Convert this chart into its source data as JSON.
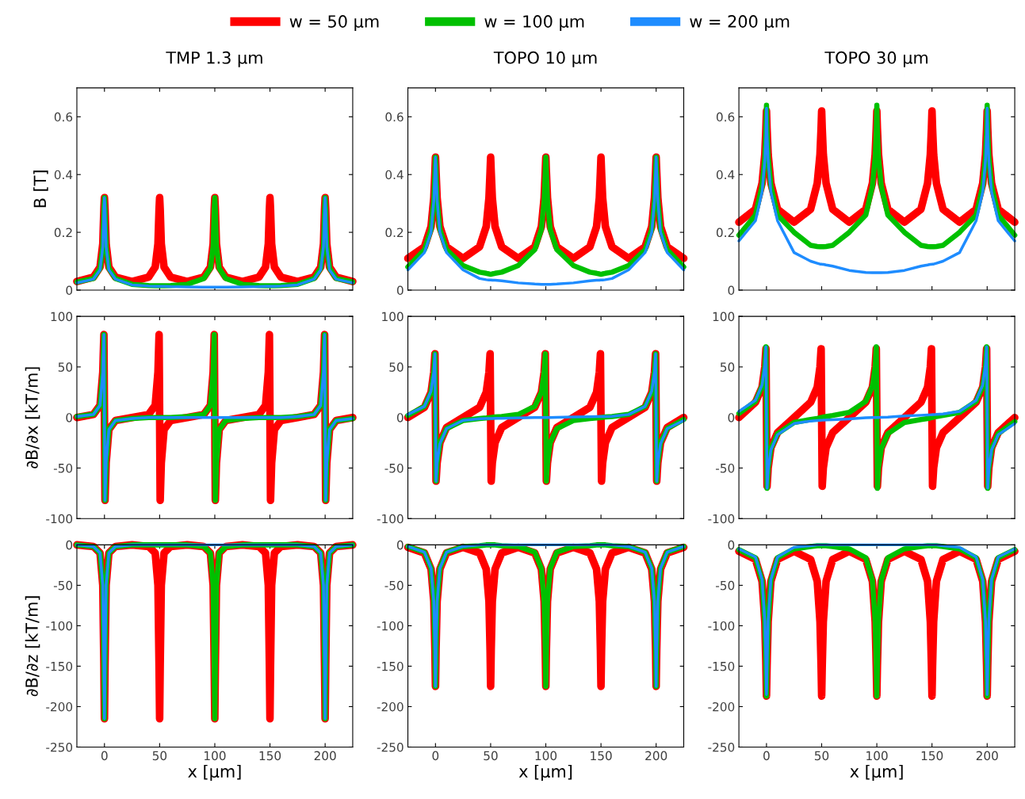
{
  "chart_data": [
    {
      "type": "line",
      "title": "TMP 1.3 µm",
      "ylabel": "B [T]",
      "legend": "top",
      "xlim": [
        -25,
        225
      ],
      "ylim": [
        0,
        0.7
      ],
      "yticks": [
        0,
        0.2,
        0.4,
        0.6
      ],
      "xticks": [
        0,
        50,
        100,
        150,
        200
      ],
      "tick_labels": "y",
      "x": [
        -25,
        -10,
        -4,
        -1.5,
        -0.5,
        0,
        0.5,
        1.5,
        4,
        10,
        25,
        40,
        46,
        48.5,
        49.5,
        50,
        50.5,
        51.5,
        54,
        60,
        75,
        90,
        96,
        98.5,
        99.5,
        100,
        100.5,
        101.5,
        104,
        110,
        125,
        140,
        146,
        148.5,
        149.5,
        150,
        150.5,
        151.5,
        154,
        160,
        175,
        190,
        196,
        198.5,
        199.5,
        200,
        200.5,
        201.5,
        204,
        210,
        225
      ],
      "series": [
        {
          "name": "w = 50 µm",
          "color": "#ff0000",
          "values": [
            0.03,
            0.045,
            0.08,
            0.16,
            0.28,
            0.32,
            0.28,
            0.16,
            0.08,
            0.045,
            0.03,
            0.045,
            0.08,
            0.16,
            0.28,
            0.32,
            0.28,
            0.16,
            0.08,
            0.045,
            0.03,
            0.045,
            0.08,
            0.16,
            0.28,
            0.32,
            0.28,
            0.16,
            0.08,
            0.045,
            0.03,
            0.045,
            0.08,
            0.16,
            0.28,
            0.32,
            0.28,
            0.16,
            0.08,
            0.045,
            0.03,
            0.045,
            0.08,
            0.16,
            0.28,
            0.32,
            0.28,
            0.16,
            0.08,
            0.045,
            0.03
          ]
        },
        {
          "name": "w = 100 µm",
          "color": "#00c000",
          "values": [
            0.028,
            0.04,
            0.075,
            0.15,
            0.28,
            0.32,
            0.28,
            0.15,
            0.075,
            0.04,
            0.02,
            0.016,
            0.015,
            0.015,
            0.015,
            0.015,
            0.015,
            0.015,
            0.015,
            0.016,
            0.02,
            0.04,
            0.075,
            0.15,
            0.28,
            0.32,
            0.28,
            0.15,
            0.075,
            0.04,
            0.02,
            0.016,
            0.015,
            0.015,
            0.015,
            0.015,
            0.015,
            0.015,
            0.015,
            0.016,
            0.02,
            0.04,
            0.075,
            0.15,
            0.28,
            0.32,
            0.28,
            0.15,
            0.075,
            0.04,
            0.028
          ]
        },
        {
          "name": "w = 200 µm",
          "color": "#1e8cff",
          "values": [
            0.025,
            0.038,
            0.07,
            0.15,
            0.28,
            0.32,
            0.28,
            0.15,
            0.07,
            0.038,
            0.018,
            0.014,
            0.013,
            0.013,
            0.013,
            0.013,
            0.013,
            0.013,
            0.013,
            0.012,
            0.011,
            0.01,
            0.01,
            0.01,
            0.01,
            0.01,
            0.01,
            0.01,
            0.01,
            0.01,
            0.011,
            0.012,
            0.013,
            0.013,
            0.013,
            0.013,
            0.013,
            0.013,
            0.013,
            0.014,
            0.018,
            0.038,
            0.07,
            0.15,
            0.28,
            0.32,
            0.28,
            0.15,
            0.07,
            0.038,
            0.025
          ]
        }
      ]
    },
    {
      "type": "line",
      "title": "TOPO 10 µm",
      "xlim": [
        -25,
        225
      ],
      "ylim": [
        0,
        0.7
      ],
      "yticks": [
        0,
        0.2,
        0.4,
        0.6
      ],
      "xticks": [
        0,
        50,
        100,
        150,
        200
      ],
      "tick_labels": "y",
      "x": [
        -25,
        -10,
        -4,
        -1.5,
        -0.5,
        0,
        0.5,
        1.5,
        4,
        10,
        25,
        40,
        46,
        48.5,
        49.5,
        50,
        50.5,
        51.5,
        54,
        60,
        75,
        90,
        96,
        98.5,
        99.5,
        100,
        100.5,
        101.5,
        104,
        110,
        125,
        140,
        146,
        148.5,
        149.5,
        150,
        150.5,
        151.5,
        154,
        160,
        175,
        190,
        196,
        198.5,
        199.5,
        200,
        200.5,
        201.5,
        204,
        210,
        225
      ],
      "series": [
        {
          "color": "#ff0000",
          "values": [
            0.11,
            0.15,
            0.22,
            0.32,
            0.41,
            0.46,
            0.41,
            0.32,
            0.22,
            0.15,
            0.11,
            0.15,
            0.22,
            0.32,
            0.41,
            0.46,
            0.41,
            0.32,
            0.22,
            0.15,
            0.11,
            0.15,
            0.22,
            0.32,
            0.41,
            0.46,
            0.41,
            0.32,
            0.22,
            0.15,
            0.11,
            0.15,
            0.22,
            0.32,
            0.41,
            0.46,
            0.41,
            0.32,
            0.22,
            0.15,
            0.11,
            0.15,
            0.22,
            0.32,
            0.41,
            0.46,
            0.41,
            0.32,
            0.22,
            0.15,
            0.11
          ]
        },
        {
          "color": "#00c000",
          "values": [
            0.08,
            0.14,
            0.21,
            0.31,
            0.41,
            0.46,
            0.41,
            0.31,
            0.21,
            0.14,
            0.085,
            0.062,
            0.058,
            0.056,
            0.055,
            0.055,
            0.055,
            0.056,
            0.058,
            0.062,
            0.085,
            0.14,
            0.21,
            0.31,
            0.41,
            0.46,
            0.41,
            0.31,
            0.21,
            0.14,
            0.085,
            0.062,
            0.058,
            0.056,
            0.055,
            0.055,
            0.055,
            0.056,
            0.058,
            0.062,
            0.085,
            0.14,
            0.21,
            0.31,
            0.41,
            0.46,
            0.41,
            0.31,
            0.21,
            0.14,
            0.08
          ]
        },
        {
          "color": "#1e8cff",
          "values": [
            0.07,
            0.13,
            0.2,
            0.31,
            0.41,
            0.46,
            0.41,
            0.31,
            0.2,
            0.13,
            0.07,
            0.04,
            0.036,
            0.035,
            0.035,
            0.035,
            0.035,
            0.034,
            0.034,
            0.032,
            0.025,
            0.021,
            0.02,
            0.02,
            0.02,
            0.02,
            0.02,
            0.02,
            0.02,
            0.021,
            0.025,
            0.032,
            0.034,
            0.034,
            0.035,
            0.035,
            0.035,
            0.035,
            0.036,
            0.04,
            0.07,
            0.13,
            0.2,
            0.31,
            0.41,
            0.46,
            0.41,
            0.31,
            0.2,
            0.13,
            0.07
          ]
        }
      ]
    },
    {
      "type": "line",
      "title": "TOPO 30 µm",
      "xlim": [
        -25,
        225
      ],
      "ylim": [
        0,
        0.7
      ],
      "yticks": [
        0,
        0.2,
        0.4,
        0.6
      ],
      "xticks": [
        0,
        50,
        100,
        150,
        200
      ],
      "tick_labels": "y",
      "x": [
        -25,
        -10,
        -4,
        -1.5,
        -0.5,
        0,
        0.5,
        1.5,
        4,
        10,
        25,
        40,
        46,
        48.5,
        49.5,
        50,
        50.5,
        51.5,
        54,
        60,
        75,
        90,
        96,
        98.5,
        99.5,
        100,
        100.5,
        101.5,
        104,
        110,
        125,
        140,
        146,
        148.5,
        149.5,
        150,
        150.5,
        151.5,
        154,
        160,
        175,
        190,
        196,
        198.5,
        199.5,
        200,
        200.5,
        201.5,
        204,
        210,
        225
      ],
      "series": [
        {
          "color": "#ff0000",
          "values": [
            0.235,
            0.28,
            0.37,
            0.47,
            0.56,
            0.62,
            0.56,
            0.47,
            0.37,
            0.28,
            0.235,
            0.28,
            0.37,
            0.47,
            0.56,
            0.62,
            0.56,
            0.47,
            0.37,
            0.28,
            0.235,
            0.28,
            0.37,
            0.47,
            0.56,
            0.62,
            0.56,
            0.47,
            0.37,
            0.28,
            0.235,
            0.28,
            0.37,
            0.47,
            0.56,
            0.62,
            0.56,
            0.47,
            0.37,
            0.28,
            0.235,
            0.28,
            0.37,
            0.47,
            0.56,
            0.62,
            0.56,
            0.47,
            0.37,
            0.28,
            0.235
          ]
        },
        {
          "color": "#00c000",
          "values": [
            0.19,
            0.26,
            0.36,
            0.46,
            0.55,
            0.64,
            0.55,
            0.46,
            0.36,
            0.26,
            0.2,
            0.155,
            0.151,
            0.15,
            0.15,
            0.15,
            0.15,
            0.15,
            0.151,
            0.155,
            0.2,
            0.26,
            0.36,
            0.46,
            0.55,
            0.64,
            0.55,
            0.46,
            0.36,
            0.26,
            0.2,
            0.155,
            0.151,
            0.15,
            0.15,
            0.15,
            0.15,
            0.15,
            0.151,
            0.155,
            0.2,
            0.26,
            0.36,
            0.46,
            0.55,
            0.64,
            0.55,
            0.46,
            0.36,
            0.26,
            0.19
          ]
        },
        {
          "color": "#1e8cff",
          "values": [
            0.17,
            0.24,
            0.34,
            0.45,
            0.54,
            0.63,
            0.54,
            0.45,
            0.34,
            0.24,
            0.13,
            0.1,
            0.093,
            0.09,
            0.09,
            0.09,
            0.089,
            0.089,
            0.087,
            0.083,
            0.068,
            0.061,
            0.06,
            0.06,
            0.06,
            0.06,
            0.06,
            0.06,
            0.06,
            0.061,
            0.068,
            0.083,
            0.087,
            0.089,
            0.089,
            0.09,
            0.09,
            0.09,
            0.093,
            0.1,
            0.13,
            0.24,
            0.34,
            0.45,
            0.54,
            0.63,
            0.54,
            0.45,
            0.34,
            0.24,
            0.17
          ]
        }
      ]
    },
    {
      "type": "line",
      "ylabel": "∂B/∂x [kT/m]",
      "xlim": [
        -25,
        225
      ],
      "ylim": [
        -100,
        100
      ],
      "yticks": [
        -100,
        -50,
        0,
        50,
        100
      ],
      "xticks": [
        0,
        50,
        100,
        150,
        200
      ],
      "tick_labels": "y",
      "x": [
        -25,
        -10,
        -4,
        -1.5,
        -0.5,
        0,
        0.5,
        1.5,
        4,
        10,
        25,
        40,
        46,
        48.5,
        49.5,
        50,
        50.5,
        51.5,
        54,
        60,
        75,
        90,
        96,
        98.5,
        99.5,
        100,
        100.5,
        101.5,
        104,
        110,
        125,
        140,
        146,
        148.5,
        149.5,
        150,
        150.5,
        151.5,
        154,
        160,
        175,
        190,
        196,
        198.5,
        199.5,
        200,
        200.5,
        201.5,
        204,
        210,
        225
      ],
      "series": [
        {
          "color": "#ff0000",
          "values": [
            0,
            3,
            12,
            45,
            82,
            0,
            -82,
            -45,
            -12,
            -3,
            0,
            3,
            12,
            45,
            82,
            0,
            -82,
            -45,
            -12,
            -3,
            0,
            3,
            12,
            45,
            82,
            0,
            -82,
            -45,
            -12,
            -3,
            0,
            3,
            12,
            45,
            82,
            0,
            -82,
            -45,
            -12,
            -3,
            0,
            3,
            12,
            45,
            82,
            0,
            -82,
            -45,
            -12,
            -3,
            0
          ]
        },
        {
          "color": "#00c000",
          "values": [
            1,
            3,
            12,
            45,
            82,
            0,
            -82,
            -45,
            -12,
            -3,
            -1,
            0,
            0,
            0,
            0,
            0,
            0,
            0,
            0,
            0,
            1,
            3,
            12,
            45,
            82,
            0,
            -82,
            -45,
            -12,
            -3,
            -1,
            0,
            0,
            0,
            0,
            0,
            0,
            0,
            0,
            0,
            1,
            3,
            12,
            45,
            82,
            0,
            -82,
            -45,
            -12,
            -3,
            -1
          ]
        },
        {
          "color": "#1e8cff",
          "values": [
            1,
            3,
            12,
            45,
            82,
            0,
            -82,
            -45,
            -12,
            -3,
            -1,
            0,
            0,
            0,
            0,
            0,
            0,
            0,
            0,
            0,
            0,
            0,
            0,
            0,
            0,
            0,
            0,
            0,
            0,
            0,
            0,
            0,
            0,
            0,
            0,
            0,
            0,
            0,
            0,
            0,
            1,
            3,
            12,
            45,
            82,
            0,
            -82,
            -45,
            -12,
            -3,
            -1
          ]
        }
      ]
    },
    {
      "type": "line",
      "xlim": [
        -25,
        225
      ],
      "ylim": [
        -100,
        100
      ],
      "yticks": [
        -100,
        -50,
        0,
        50,
        100
      ],
      "xticks": [
        0,
        50,
        100,
        150,
        200
      ],
      "tick_labels": "y",
      "x": [
        -25,
        -10,
        -4,
        -1.5,
        -0.5,
        0,
        0.5,
        1.5,
        4,
        10,
        25,
        40,
        46,
        48.5,
        49.5,
        50,
        50.5,
        51.5,
        54,
        60,
        75,
        90,
        96,
        98.5,
        99.5,
        100,
        100.5,
        101.5,
        104,
        110,
        125,
        140,
        146,
        148.5,
        149.5,
        150,
        150.5,
        151.5,
        154,
        160,
        175,
        190,
        196,
        198.5,
        199.5,
        200,
        200.5,
        201.5,
        204,
        210,
        225
      ],
      "series": [
        {
          "color": "#ff0000",
          "values": [
            0,
            10,
            25,
            45,
            63,
            0,
            -63,
            -45,
            -25,
            -10,
            0,
            10,
            25,
            45,
            63,
            0,
            -63,
            -45,
            -25,
            -10,
            0,
            10,
            25,
            45,
            63,
            0,
            -63,
            -45,
            -25,
            -10,
            0,
            10,
            25,
            45,
            63,
            0,
            -63,
            -45,
            -25,
            -10,
            0,
            10,
            25,
            45,
            63,
            0,
            -63,
            -45,
            -25,
            -10,
            0
          ]
        },
        {
          "color": "#00c000",
          "values": [
            2,
            11,
            25,
            45,
            63,
            0,
            -63,
            -45,
            -25,
            -11,
            -3,
            -1,
            -0.5,
            -0.2,
            0,
            0,
            0,
            0.2,
            0.5,
            1,
            3,
            11,
            25,
            45,
            63,
            0,
            -63,
            -45,
            -25,
            -11,
            -3,
            -1,
            -0.5,
            -0.2,
            0,
            0,
            0,
            0.2,
            0.5,
            1,
            3,
            11,
            25,
            45,
            63,
            0,
            -63,
            -45,
            -25,
            -11,
            -2
          ]
        },
        {
          "color": "#1e8cff",
          "values": [
            3,
            11,
            26,
            45,
            63,
            0,
            -63,
            -45,
            -26,
            -11,
            -3,
            -1.2,
            -1,
            -1,
            -1,
            -1,
            -1,
            -1,
            -0.9,
            -0.8,
            -0.5,
            -0.1,
            0,
            0,
            0,
            0,
            0,
            0,
            0,
            0.1,
            0.5,
            0.8,
            0.9,
            1,
            1,
            1,
            1,
            1,
            1,
            1.2,
            3,
            11,
            26,
            45,
            63,
            0,
            -63,
            -45,
            -26,
            -11,
            -3
          ]
        }
      ]
    },
    {
      "type": "line",
      "xlim": [
        -25,
        225
      ],
      "ylim": [
        -100,
        100
      ],
      "yticks": [
        -100,
        -50,
        0,
        50,
        100
      ],
      "xticks": [
        0,
        50,
        100,
        150,
        200
      ],
      "tick_labels": "y",
      "x": [
        -25,
        -10,
        -4,
        -1.5,
        -0.5,
        0,
        0.5,
        1.5,
        4,
        10,
        25,
        40,
        46,
        48.5,
        49.5,
        50,
        50.5,
        51.5,
        54,
        60,
        75,
        90,
        96,
        98.5,
        99.5,
        100,
        100.5,
        101.5,
        104,
        110,
        125,
        140,
        146,
        148.5,
        149.5,
        150,
        150.5,
        151.5,
        154,
        160,
        175,
        190,
        196,
        198.5,
        199.5,
        200,
        200.5,
        201.5,
        204,
        210,
        225
      ],
      "series": [
        {
          "color": "#ff0000",
          "values": [
            0,
            15,
            30,
            50,
            68,
            0,
            -68,
            -50,
            -30,
            -15,
            0,
            15,
            30,
            50,
            68,
            0,
            -68,
            -50,
            -30,
            -15,
            0,
            15,
            30,
            50,
            68,
            0,
            -68,
            -50,
            -30,
            -15,
            0,
            15,
            30,
            50,
            68,
            0,
            -68,
            -50,
            -30,
            -15,
            0,
            15,
            30,
            50,
            68,
            0,
            -68,
            -50,
            -30,
            -15,
            0
          ]
        },
        {
          "color": "#00c000",
          "values": [
            4,
            16,
            31,
            50,
            70,
            0,
            -70,
            -50,
            -31,
            -16,
            -5,
            -2,
            -1,
            -0.4,
            0,
            0,
            0,
            0.4,
            1,
            2,
            5,
            16,
            31,
            50,
            70,
            0,
            -70,
            -50,
            -31,
            -16,
            -5,
            -2,
            -1,
            -0.4,
            0,
            0,
            0,
            0.4,
            1,
            2,
            5,
            16,
            31,
            50,
            70,
            0,
            -70,
            -50,
            -31,
            -16,
            -4
          ]
        },
        {
          "color": "#1e8cff",
          "values": [
            6,
            17,
            32,
            52,
            70,
            0,
            -70,
            -52,
            -32,
            -17,
            -6,
            -3.5,
            -3,
            -2.8,
            -2.8,
            -2.7,
            -2.7,
            -2.6,
            -2.5,
            -2.2,
            -1.5,
            -0.3,
            -0.1,
            0,
            0,
            0,
            0,
            0,
            0.1,
            0.3,
            1.5,
            2.2,
            2.5,
            2.6,
            2.7,
            2.7,
            2.8,
            2.8,
            3,
            3.5,
            6,
            17,
            32,
            52,
            70,
            0,
            -70,
            -52,
            -32,
            -17,
            -6
          ]
        }
      ]
    },
    {
      "type": "line",
      "ylabel": "∂B/∂z [kT/m]",
      "xlabel": "x [µm]",
      "xlim": [
        -25,
        225
      ],
      "ylim": [
        -250,
        0
      ],
      "yticks": [
        -250,
        -200,
        -150,
        -100,
        -50,
        0
      ],
      "xticks": [
        0,
        50,
        100,
        150,
        200
      ],
      "x": [
        -25,
        -10,
        -4,
        -1.5,
        -0.5,
        0,
        0.5,
        1.5,
        4,
        10,
        25,
        40,
        46,
        48.5,
        49.5,
        50,
        50.5,
        51.5,
        54,
        60,
        75,
        90,
        96,
        98.5,
        99.5,
        100,
        100.5,
        101.5,
        104,
        110,
        125,
        140,
        146,
        148.5,
        149.5,
        150,
        150.5,
        151.5,
        154,
        160,
        175,
        190,
        196,
        198.5,
        199.5,
        200,
        200.5,
        201.5,
        204,
        210,
        225
      ],
      "series": [
        {
          "color": "#ff0000",
          "values": [
            0,
            -2,
            -10,
            -50,
            -150,
            -215,
            -150,
            -50,
            -10,
            -2,
            0,
            -2,
            -10,
            -50,
            -150,
            -215,
            -150,
            -50,
            -10,
            -2,
            0,
            -2,
            -10,
            -50,
            -150,
            -215,
            -150,
            -50,
            -10,
            -2,
            0,
            -2,
            -10,
            -50,
            -150,
            -215,
            -150,
            -50,
            -10,
            -2,
            0,
            -2,
            -10,
            -50,
            -150,
            -215,
            -150,
            -50,
            -10,
            -2,
            0
          ]
        },
        {
          "color": "#00c000",
          "values": [
            0,
            -2,
            -10,
            -50,
            -150,
            -215,
            -150,
            -50,
            -10,
            -2,
            0,
            0,
            0,
            0,
            0,
            0,
            0,
            0,
            0,
            0,
            0,
            -2,
            -10,
            -50,
            -150,
            -215,
            -150,
            -50,
            -10,
            -2,
            0,
            0,
            0,
            0,
            0,
            0,
            0,
            0,
            0,
            0,
            0,
            -2,
            -10,
            -50,
            -150,
            -215,
            -150,
            -50,
            -10,
            -2,
            0
          ]
        },
        {
          "color": "#1e8cff",
          "values": [
            0,
            -2,
            -10,
            -50,
            -150,
            -215,
            -150,
            -50,
            -10,
            -2,
            0,
            0,
            0,
            0,
            0,
            0,
            0,
            0,
            0,
            0,
            0,
            0,
            0,
            0,
            0,
            0,
            0,
            0,
            0,
            0,
            0,
            0,
            0,
            0,
            0,
            0,
            0,
            0,
            0,
            0,
            0,
            -2,
            -10,
            -50,
            -150,
            -215,
            -150,
            -50,
            -10,
            -2,
            0
          ]
        }
      ]
    },
    {
      "type": "line",
      "xlabel": "x [µm]",
      "xlim": [
        -25,
        225
      ],
      "ylim": [
        -250,
        0
      ],
      "yticks": [
        -250,
        -200,
        -150,
        -100,
        -50,
        0
      ],
      "xticks": [
        0,
        50,
        100,
        150,
        200
      ],
      "x": [
        -25,
        -10,
        -4,
        -1.5,
        -0.5,
        0,
        0.5,
        1.5,
        4,
        10,
        25,
        40,
        46,
        48.5,
        49.5,
        50,
        50.5,
        51.5,
        54,
        60,
        75,
        90,
        96,
        98.5,
        99.5,
        100,
        100.5,
        101.5,
        104,
        110,
        125,
        140,
        146,
        148.5,
        149.5,
        150,
        150.5,
        151.5,
        154,
        160,
        175,
        190,
        196,
        198.5,
        199.5,
        200,
        200.5,
        201.5,
        204,
        210,
        225
      ],
      "series": [
        {
          "color": "#ff0000",
          "values": [
            -3,
            -10,
            -30,
            -70,
            -130,
            -175,
            -130,
            -70,
            -30,
            -10,
            -3,
            -10,
            -30,
            -70,
            -130,
            -175,
            -130,
            -70,
            -30,
            -10,
            -3,
            -10,
            -30,
            -70,
            -130,
            -175,
            -130,
            -70,
            -30,
            -10,
            -3,
            -10,
            -30,
            -70,
            -130,
            -175,
            -130,
            -70,
            -30,
            -10,
            -3,
            -10,
            -30,
            -70,
            -130,
            -175,
            -130,
            -70,
            -30,
            -10,
            -3
          ]
        },
        {
          "color": "#00c000",
          "values": [
            -2,
            -9,
            -29,
            -70,
            -130,
            -175,
            -130,
            -70,
            -29,
            -9,
            -2,
            -1,
            0,
            0,
            0,
            0,
            0,
            0,
            0,
            -1,
            -2,
            -9,
            -29,
            -70,
            -130,
            -175,
            -130,
            -70,
            -29,
            -9,
            -2,
            -1,
            0,
            0,
            0,
            0,
            0,
            0,
            0,
            -1,
            -2,
            -9,
            -29,
            -70,
            -130,
            -175,
            -130,
            -70,
            -29,
            -9,
            -2
          ]
        },
        {
          "color": "#1e8cff",
          "values": [
            -2,
            -9,
            -29,
            -70,
            -130,
            -175,
            -130,
            -70,
            -29,
            -9,
            -2,
            0,
            0,
            0,
            0,
            0,
            0,
            0,
            0,
            0,
            0,
            0,
            0,
            0,
            0,
            0,
            0,
            0,
            0,
            0,
            0,
            0,
            0,
            0,
            0,
            0,
            0,
            0,
            0,
            0,
            -2,
            -9,
            -29,
            -70,
            -130,
            -175,
            -130,
            -70,
            -29,
            -9,
            -2
          ]
        }
      ]
    },
    {
      "type": "line",
      "xlabel": "x [µm]",
      "xlim": [
        -25,
        225
      ],
      "ylim": [
        -250,
        0
      ],
      "yticks": [
        -250,
        -200,
        -150,
        -100,
        -50,
        0
      ],
      "xticks": [
        0,
        50,
        100,
        150,
        200
      ],
      "x": [
        -25,
        -10,
        -4,
        -1.5,
        -0.5,
        0,
        0.5,
        1.5,
        4,
        10,
        25,
        40,
        46,
        48.5,
        49.5,
        50,
        50.5,
        51.5,
        54,
        60,
        75,
        90,
        96,
        98.5,
        99.5,
        100,
        100.5,
        101.5,
        104,
        110,
        125,
        140,
        146,
        148.5,
        149.5,
        150,
        150.5,
        151.5,
        154,
        160,
        175,
        190,
        196,
        198.5,
        199.5,
        200,
        200.5,
        201.5,
        204,
        210,
        225
      ],
      "series": [
        {
          "color": "#ff0000",
          "values": [
            -8,
            -18,
            -45,
            -95,
            -150,
            -187,
            -150,
            -95,
            -45,
            -18,
            -8,
            -18,
            -45,
            -95,
            -150,
            -187,
            -150,
            -95,
            -45,
            -18,
            -8,
            -18,
            -45,
            -95,
            -150,
            -187,
            -150,
            -95,
            -45,
            -18,
            -8,
            -18,
            -45,
            -95,
            -150,
            -187,
            -150,
            -95,
            -45,
            -18,
            -8,
            -18,
            -45,
            -95,
            -150,
            -187,
            -150,
            -95,
            -45,
            -18,
            -8
          ]
        },
        {
          "color": "#00c000",
          "values": [
            -6,
            -16,
            -44,
            -95,
            -150,
            -187,
            -150,
            -95,
            -44,
            -16,
            -5,
            -2,
            -1,
            -1,
            -1,
            -1,
            -1,
            -1,
            -1,
            -2,
            -5,
            -16,
            -44,
            -95,
            -150,
            -187,
            -150,
            -95,
            -44,
            -16,
            -5,
            -2,
            -1,
            -1,
            -1,
            -1,
            -1,
            -1,
            -1,
            -2,
            -5,
            -16,
            -44,
            -95,
            -150,
            -187,
            -150,
            -95,
            -44,
            -16,
            -6
          ]
        },
        {
          "color": "#1e8cff",
          "values": [
            -5,
            -15,
            -43,
            -94,
            -150,
            -185,
            -150,
            -94,
            -43,
            -15,
            -3,
            -1,
            0,
            0,
            0,
            0,
            0,
            0,
            0,
            0,
            0,
            0,
            0,
            0,
            0,
            0,
            0,
            0,
            0,
            0,
            0,
            0,
            0,
            0,
            0,
            0,
            0,
            0,
            0,
            -1,
            -3,
            -15,
            -43,
            -94,
            -150,
            -185,
            -150,
            -94,
            -43,
            -15,
            -5
          ]
        }
      ]
    }
  ]
}
